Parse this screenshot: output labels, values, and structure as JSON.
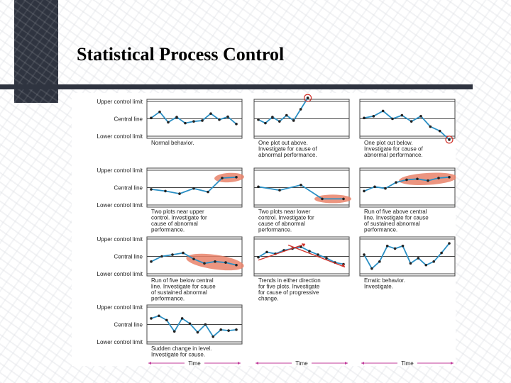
{
  "slide": {
    "title": "Statistical Process Control"
  },
  "axis_labels": {
    "upper": "Upper control limit",
    "central": "Central line",
    "lower": "Lower control limit"
  },
  "time_label": "Time",
  "colors": {
    "series": "#2a8fc4",
    "highlight": "#e9836a",
    "outlier_ring": "#d03028",
    "trend_arrow": "#d03028",
    "frame": "#444444"
  },
  "panels": [
    {
      "id": "normal-behavior",
      "caption": [
        "Normal behavior."
      ],
      "series": [
        0.05,
        0.4,
        -0.2,
        0.1,
        -0.25,
        -0.15,
        -0.1,
        0.3,
        -0.05,
        0.12,
        -0.3
      ],
      "highlight": "none"
    },
    {
      "id": "one-plot-out-above",
      "caption": [
        "One plot out above.",
        "Investigate for cause of",
        "abnormal performance."
      ],
      "series": [
        -0.05,
        -0.25,
        0.1,
        -0.15,
        0.2,
        -0.1,
        0.55,
        1.2
      ],
      "highlight": "ring-last"
    },
    {
      "id": "one-plot-out-below",
      "caption": [
        "One plot out below.",
        "Investigate for cause of",
        "abnormal performance."
      ],
      "series": [
        0.05,
        0.15,
        0.45,
        0.0,
        0.2,
        -0.15,
        0.15,
        -0.45,
        -0.7,
        -1.2
      ],
      "highlight": "ring-last"
    },
    {
      "id": "two-plots-near-upper",
      "caption": [
        "Two plots near upper",
        "control. Investigate for",
        "cause of abnormal",
        "performance."
      ],
      "series": [
        -0.1,
        -0.2,
        -0.35,
        -0.05,
        -0.25,
        0.55,
        0.6
      ],
      "highlight": "ellipse-last-2"
    },
    {
      "id": "two-plots-near-lower",
      "caption": [
        "Two plots near lower",
        "control. Investigate for",
        "cause of abnormal",
        "performance."
      ],
      "series": [
        0.05,
        -0.15,
        0.15,
        -0.65,
        -0.65
      ],
      "highlight": "ellipse-last-2"
    },
    {
      "id": "run-of-five-above",
      "caption": [
        "Run of five above central",
        "line. Investigate for cause",
        "of sustained abnormal",
        "performance."
      ],
      "series": [
        -0.2,
        0.05,
        -0.05,
        0.3,
        0.45,
        0.5,
        0.4,
        0.55,
        0.6
      ],
      "highlight": "ellipse-last-5"
    },
    {
      "id": "run-of-five-below",
      "caption": [
        "Run of five below central",
        "line. Investigate for cause",
        "of sustained abnormal",
        "performance."
      ],
      "series": [
        -0.3,
        0.0,
        0.1,
        0.2,
        -0.15,
        -0.4,
        -0.3,
        -0.35,
        -0.5
      ],
      "highlight": "ellipse-last-5"
    },
    {
      "id": "trends-either-direction",
      "caption": [
        "Trends in either direction",
        "for five plots. Investigate",
        "for cause of progressive",
        "change."
      ],
      "series": [
        -0.05,
        0.25,
        0.15,
        0.35,
        0.45,
        0.55,
        0.3,
        0.1,
        -0.1,
        -0.35,
        -0.45
      ],
      "highlight": "trend-arrows"
    },
    {
      "id": "erratic-behavior",
      "caption": [
        "Erratic behavior.",
        "Investigate."
      ],
      "series": [
        0.1,
        -0.7,
        -0.3,
        0.6,
        0.45,
        0.6,
        -0.4,
        -0.1,
        -0.5,
        -0.3,
        0.2,
        0.75
      ],
      "highlight": "none"
    },
    {
      "id": "sudden-change-in-level",
      "caption": [
        "Sudden change in level.",
        "Investigate for cause."
      ],
      "series": [
        0.35,
        0.5,
        0.25,
        -0.4,
        0.35,
        0.05,
        -0.45,
        0.0,
        -0.7,
        -0.3,
        -0.35,
        -0.3
      ],
      "highlight": "none"
    }
  ]
}
